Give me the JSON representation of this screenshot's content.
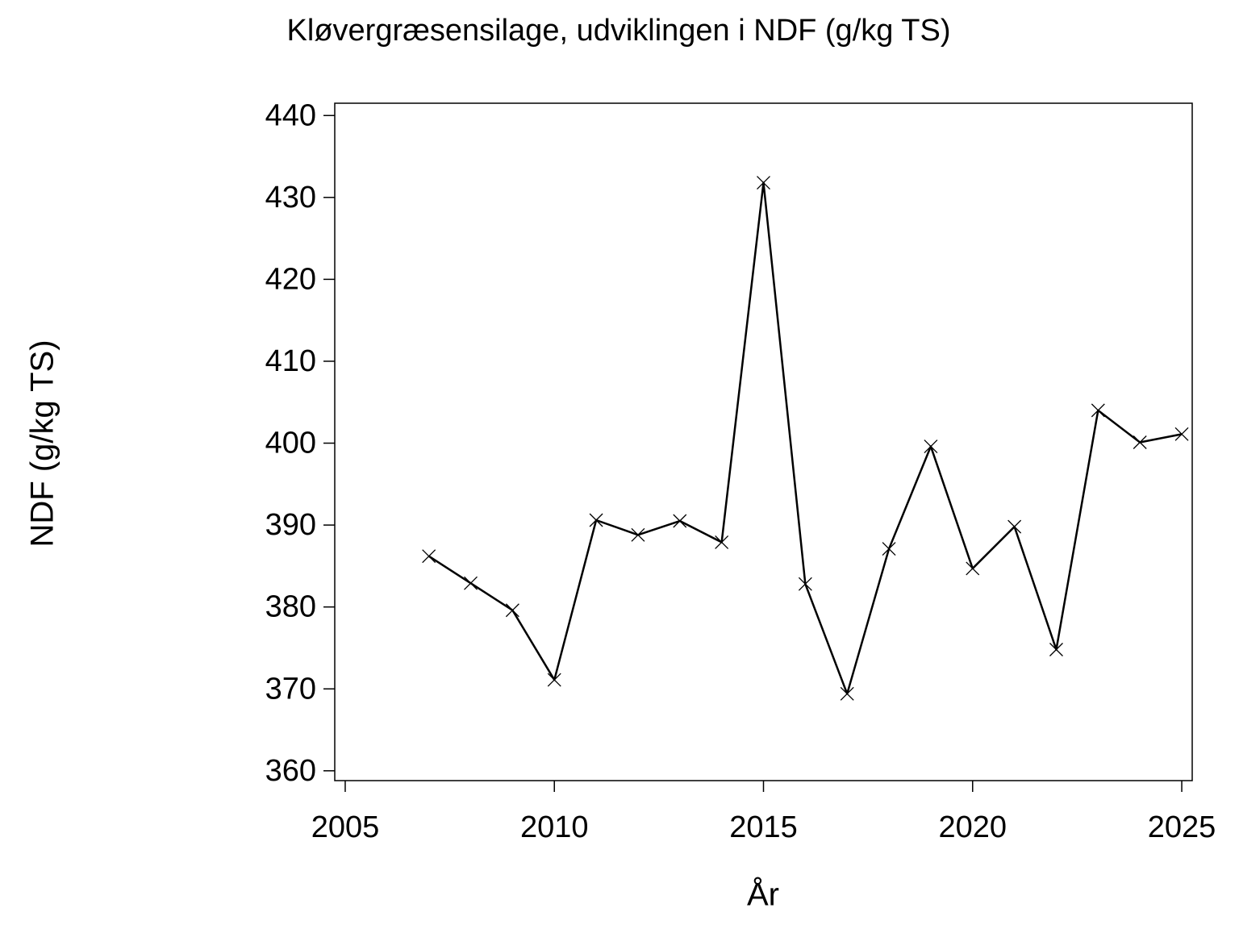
{
  "chart_data": {
    "type": "line",
    "title": "Kløvergræsensilage,  udviklingen  i  NDF  (g/kg  TS)",
    "x_label": "År",
    "y_label": "NDF  (g/kg  TS)",
    "x": [
      2007,
      2008,
      2009,
      2010,
      2011,
      2012,
      2013,
      2014,
      2015,
      2016,
      2017,
      2018,
      2019,
      2020,
      2021,
      2022,
      2023,
      2024,
      2025
    ],
    "values": [
      386.2,
      382.9,
      379.6,
      371.1,
      390.6,
      388.8,
      390.5,
      387.9,
      431.8,
      382.8,
      369.4,
      387.1,
      399.6,
      384.7,
      389.8,
      374.8,
      404.0,
      400.1,
      401.1
    ],
    "color": "#000000",
    "xlim": [
      2004.75,
      2025.25
    ],
    "xticks": [
      2005,
      2010,
      2015,
      2020,
      2025
    ],
    "ylim": [
      358.8,
      441.5
    ],
    "yticks": [
      360,
      370,
      380,
      390,
      400,
      410,
      420,
      430,
      440
    ],
    "grid": false
  }
}
